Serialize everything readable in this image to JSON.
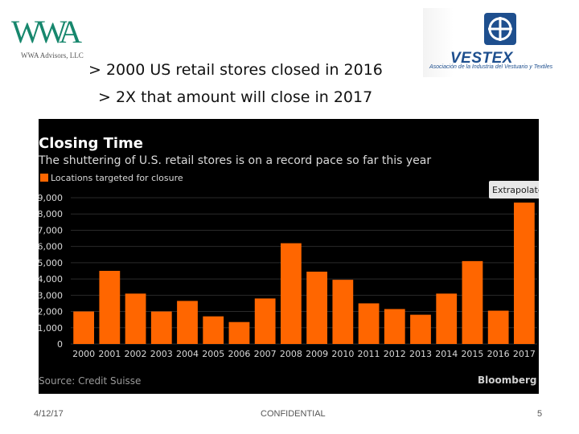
{
  "logos": {
    "wwa_mark": "WWA",
    "wwa_sub": "WWA Advisors, LLC",
    "vestex_name": "VESTEX",
    "vestex_sub": "Asociación de la Industria del Vestuario y Textiles"
  },
  "headline": {
    "line1": "> 2000 US retail stores closed in 2016",
    "line2": "> 2X that amount will close in 2017"
  },
  "chart_data": {
    "type": "bar",
    "title": "Closing Time",
    "subtitle": "The shuttering of U.S. retail stores is on a record pace so far this year",
    "legend": "Locations targeted for closure",
    "legend_position": "top-left",
    "annotation": "Extrapolated",
    "source": "Source: Credit Suisse",
    "brand": "Bloomberg",
    "bar_color": "#ff6600",
    "categories": [
      "2000",
      "2001",
      "2002",
      "2003",
      "2004",
      "2005",
      "2006",
      "2007",
      "2008",
      "2009",
      "2010",
      "2011",
      "2012",
      "2013",
      "2014",
      "2015",
      "2016",
      "2017"
    ],
    "values": [
      2000,
      4500,
      3100,
      2000,
      2650,
      1700,
      1350,
      2800,
      6200,
      4450,
      3950,
      2500,
      2150,
      1800,
      3100,
      5100,
      2050,
      8700
    ],
    "yticks": [
      "0",
      "1,000",
      "2,000",
      "3,000",
      "4,000",
      "5,000",
      "6,000",
      "7,000",
      "8,000",
      "9,000"
    ],
    "ylim": [
      0,
      9000
    ],
    "grid": true
  },
  "footer": {
    "date": "4/12/17",
    "confidential": "CONFIDENTIAL",
    "page": "5"
  }
}
